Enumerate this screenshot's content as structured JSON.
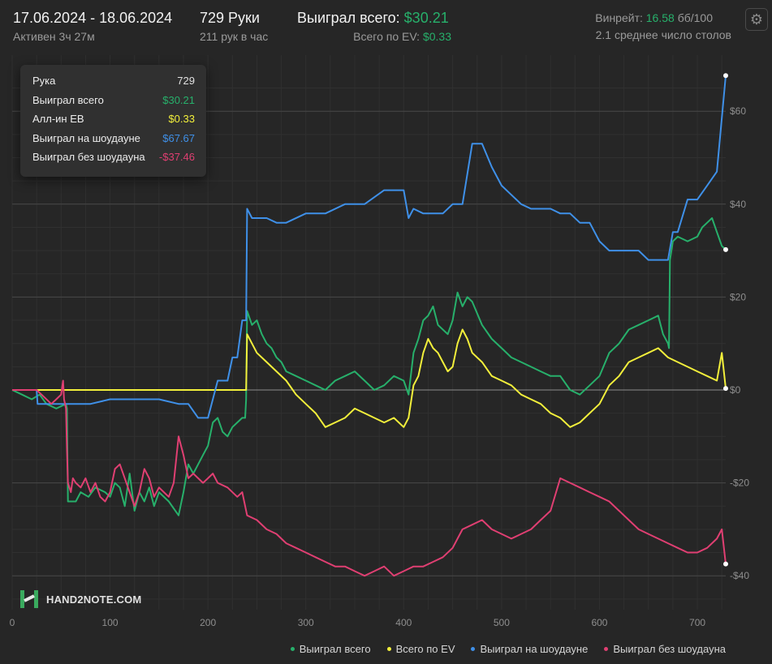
{
  "header": {
    "date_range": "17.06.2024 - 18.06.2024",
    "active": "Активен 3ч 27м",
    "hands": "729 Руки",
    "hands_rate": "211 рук в час",
    "won_label": "Выиграл всего:",
    "won_value": "$30.21",
    "ev_label": "Всего по EV:",
    "ev_value": "$0.33",
    "winrate_label": "Винрейт:",
    "winrate_value": "16.58",
    "winrate_unit": "бб/100",
    "tables": "2.1 среднее число столов"
  },
  "settings_icon": "gear-icon",
  "tooltip": [
    {
      "label": "Рука",
      "value": "729",
      "color": "#e0e0e0"
    },
    {
      "label": "Выиграл всего",
      "value": "$30.21",
      "color": "#27b06b"
    },
    {
      "label": "Алл-ин EВ",
      "value": "$0.33",
      "color": "#f2ef3b"
    },
    {
      "label": "Выиграл на шоудауне",
      "value": "$67.67",
      "color": "#3f90e8"
    },
    {
      "label": "Выиграл без шоудауна",
      "value": "-$37.46",
      "color": "#e03f72"
    }
  ],
  "logo": {
    "text": "HAND2NOTE.COM",
    "icon": "hand2note-logo-icon"
  },
  "chart_data": {
    "type": "line",
    "xlim": [
      0,
      729
    ],
    "ylim": [
      -40,
      68
    ],
    "x_ticks": [
      0,
      100,
      200,
      300,
      400,
      500,
      600,
      700
    ],
    "y_ticks": [
      60,
      40,
      20,
      0,
      -20,
      -40
    ],
    "y_tick_labels": [
      "$60",
      "$40",
      "$20",
      "$0",
      "-$20",
      "-$40"
    ],
    "grid": true,
    "legend_position": "bottom-right",
    "series": [
      {
        "name": "Выиграл всего",
        "color": "#27b06b",
        "x": [
          0,
          10,
          20,
          28,
          35,
          45,
          55,
          56,
          57,
          65,
          70,
          78,
          85,
          95,
          100,
          105,
          110,
          115,
          120,
          125,
          130,
          135,
          140,
          145,
          150,
          160,
          170,
          175,
          180,
          185,
          190,
          195,
          200,
          205,
          210,
          215,
          220,
          225,
          230,
          235,
          238,
          239,
          240,
          245,
          250,
          255,
          260,
          265,
          270,
          275,
          280,
          290,
          300,
          310,
          320,
          330,
          340,
          350,
          360,
          370,
          380,
          390,
          400,
          405,
          410,
          415,
          420,
          425,
          430,
          435,
          440,
          445,
          450,
          455,
          460,
          465,
          470,
          480,
          490,
          500,
          510,
          520,
          530,
          540,
          550,
          560,
          570,
          580,
          590,
          600,
          610,
          620,
          630,
          640,
          650,
          660,
          665,
          670,
          671,
          672,
          675,
          680,
          690,
          700,
          705,
          710,
          715,
          720,
          725,
          729
        ],
        "y": [
          0,
          -1,
          -2,
          -1,
          -3,
          -4,
          -3,
          -4,
          -24,
          -24,
          -22,
          -23,
          -21,
          -22,
          -23,
          -20,
          -21,
          -25,
          -18,
          -26,
          -22,
          -24,
          -21,
          -25,
          -22,
          -24,
          -27,
          -22,
          -16,
          -18,
          -16,
          -14,
          -12,
          -7,
          -6,
          -9,
          -10,
          -8,
          -7,
          -6,
          -6,
          -2,
          17,
          14,
          15,
          12,
          10,
          9,
          7,
          6,
          4,
          3,
          2,
          1,
          0,
          2,
          3,
          4,
          2,
          0,
          1,
          3,
          2,
          -1,
          8,
          11,
          15,
          16,
          18,
          14,
          13,
          12,
          15,
          21,
          18,
          20,
          19,
          14,
          11,
          9,
          7,
          6,
          5,
          4,
          3,
          3,
          0,
          -1,
          1,
          3,
          8,
          10,
          13,
          14,
          15,
          16,
          12,
          10,
          9,
          28,
          32,
          33,
          32,
          33,
          35,
          36,
          37,
          34,
          31,
          30.21
        ]
      },
      {
        "name": "Всего по EV",
        "color": "#f2ef3b",
        "x": [
          0,
          239,
          240,
          245,
          250,
          260,
          270,
          280,
          290,
          300,
          310,
          320,
          330,
          340,
          350,
          360,
          370,
          380,
          390,
          400,
          405,
          410,
          415,
          420,
          425,
          430,
          435,
          440,
          445,
          450,
          455,
          460,
          465,
          470,
          480,
          490,
          500,
          510,
          520,
          530,
          540,
          550,
          560,
          570,
          580,
          590,
          600,
          610,
          620,
          630,
          640,
          650,
          660,
          670,
          680,
          690,
          700,
          710,
          720,
          725,
          729
        ],
        "y": [
          0,
          0,
          12,
          10,
          8,
          6,
          4,
          2,
          -1,
          -3,
          -5,
          -8,
          -7,
          -6,
          -4,
          -5,
          -6,
          -7,
          -6,
          -8,
          -6,
          1,
          3,
          8,
          11,
          9,
          8,
          6,
          4,
          5,
          10,
          13,
          11,
          8,
          6,
          3,
          2,
          1,
          -1,
          -2,
          -3,
          -5,
          -6,
          -8,
          -7,
          -5,
          -3,
          1,
          3,
          6,
          7,
          8,
          9,
          7,
          6,
          5,
          4,
          3,
          2,
          8,
          0.33
        ]
      },
      {
        "name": "Выиграл на шоудауне",
        "color": "#3f90e8",
        "x": [
          0,
          25,
          26,
          57,
          58,
          80,
          100,
          110,
          150,
          170,
          180,
          190,
          200,
          210,
          220,
          225,
          230,
          235,
          238,
          239,
          240,
          245,
          250,
          260,
          270,
          280,
          300,
          320,
          340,
          360,
          380,
          400,
          405,
          410,
          420,
          430,
          440,
          450,
          460,
          470,
          480,
          490,
          500,
          510,
          520,
          530,
          540,
          550,
          560,
          570,
          580,
          590,
          600,
          610,
          620,
          630,
          640,
          650,
          660,
          670,
          675,
          680,
          690,
          700,
          710,
          720,
          729
        ],
        "y": [
          0,
          0,
          -3,
          -3,
          -3,
          -3,
          -2,
          -2,
          -2,
          -3,
          -3,
          -6,
          -6,
          2,
          2,
          7,
          7,
          15,
          15,
          15,
          39,
          37,
          37,
          37,
          36,
          36,
          38,
          38,
          40,
          40,
          43,
          43,
          37,
          39,
          38,
          38,
          38,
          40,
          40,
          53,
          53,
          48,
          44,
          42,
          40,
          39,
          39,
          39,
          38,
          38,
          36,
          36,
          32,
          30,
          30,
          30,
          30,
          28,
          28,
          28,
          34,
          34,
          41,
          41,
          44,
          47,
          67.67
        ]
      },
      {
        "name": "Выиграл без шоудауна",
        "color": "#e03f72",
        "x": [
          0,
          25,
          30,
          40,
          45,
          50,
          52,
          53,
          55,
          56,
          57,
          60,
          62,
          65,
          70,
          75,
          80,
          85,
          90,
          95,
          100,
          105,
          110,
          115,
          120,
          125,
          130,
          135,
          140,
          145,
          150,
          155,
          160,
          165,
          170,
          175,
          180,
          185,
          190,
          195,
          200,
          205,
          210,
          220,
          230,
          235,
          240,
          250,
          260,
          270,
          280,
          290,
          300,
          310,
          320,
          330,
          340,
          350,
          360,
          370,
          380,
          390,
          400,
          410,
          420,
          430,
          440,
          450,
          460,
          470,
          480,
          490,
          500,
          510,
          520,
          530,
          540,
          550,
          560,
          570,
          580,
          590,
          600,
          610,
          620,
          630,
          640,
          650,
          660,
          670,
          680,
          690,
          700,
          710,
          720,
          725,
          729
        ],
        "y": [
          0,
          0,
          -1,
          -3,
          -2,
          -1,
          2,
          -2,
          -4,
          -13,
          -20,
          -22,
          -19,
          -20,
          -21,
          -19,
          -22,
          -20,
          -23,
          -24,
          -22,
          -17,
          -16,
          -19,
          -22,
          -25,
          -22,
          -17,
          -19,
          -23,
          -21,
          -22,
          -23,
          -20,
          -10,
          -14,
          -19,
          -18,
          -19,
          -20,
          -19,
          -18,
          -20,
          -21,
          -23,
          -22,
          -27,
          -28,
          -30,
          -31,
          -33,
          -34,
          -35,
          -36,
          -37,
          -38,
          -38,
          -39,
          -40,
          -39,
          -38,
          -40,
          -39,
          -38,
          -38,
          -37,
          -36,
          -34,
          -30,
          -29,
          -28,
          -30,
          -31,
          -32,
          -31,
          -30,
          -28,
          -26,
          -19,
          -20,
          -21,
          -22,
          -23,
          -24,
          -26,
          -28,
          -30,
          -31,
          -32,
          -33,
          -34,
          -35,
          -35,
          -34,
          -32,
          -30,
          -37.46
        ]
      }
    ]
  }
}
